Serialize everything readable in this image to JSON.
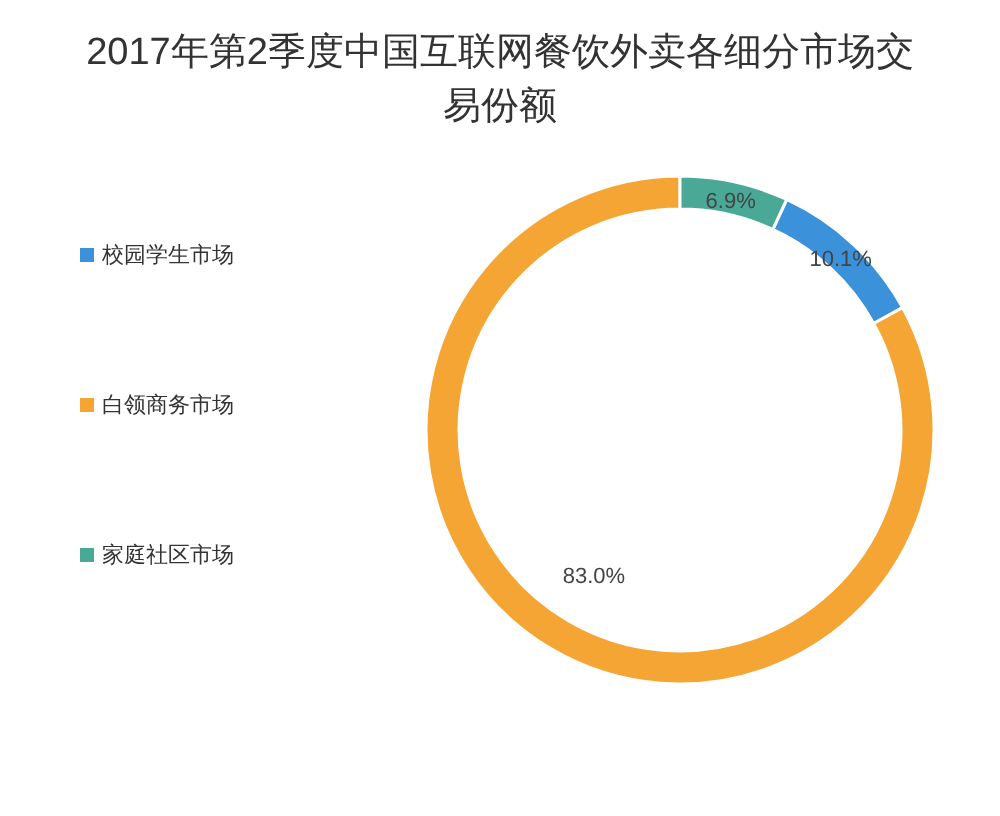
{
  "chart_data": {
    "type": "donut",
    "title": "2017年第2季度中国互联网餐饮外卖各细分市场交易份额",
    "categories": [
      "校园学生市场",
      "白领商务市场",
      "家庭社区市场"
    ],
    "values": [
      10.1,
      83.0,
      6.9
    ],
    "colors": [
      "#3b92db",
      "#f5a533",
      "#4aa996"
    ],
    "value_labels": [
      "10.1%",
      "83.0%",
      "6.9%"
    ],
    "legend": "left"
  }
}
